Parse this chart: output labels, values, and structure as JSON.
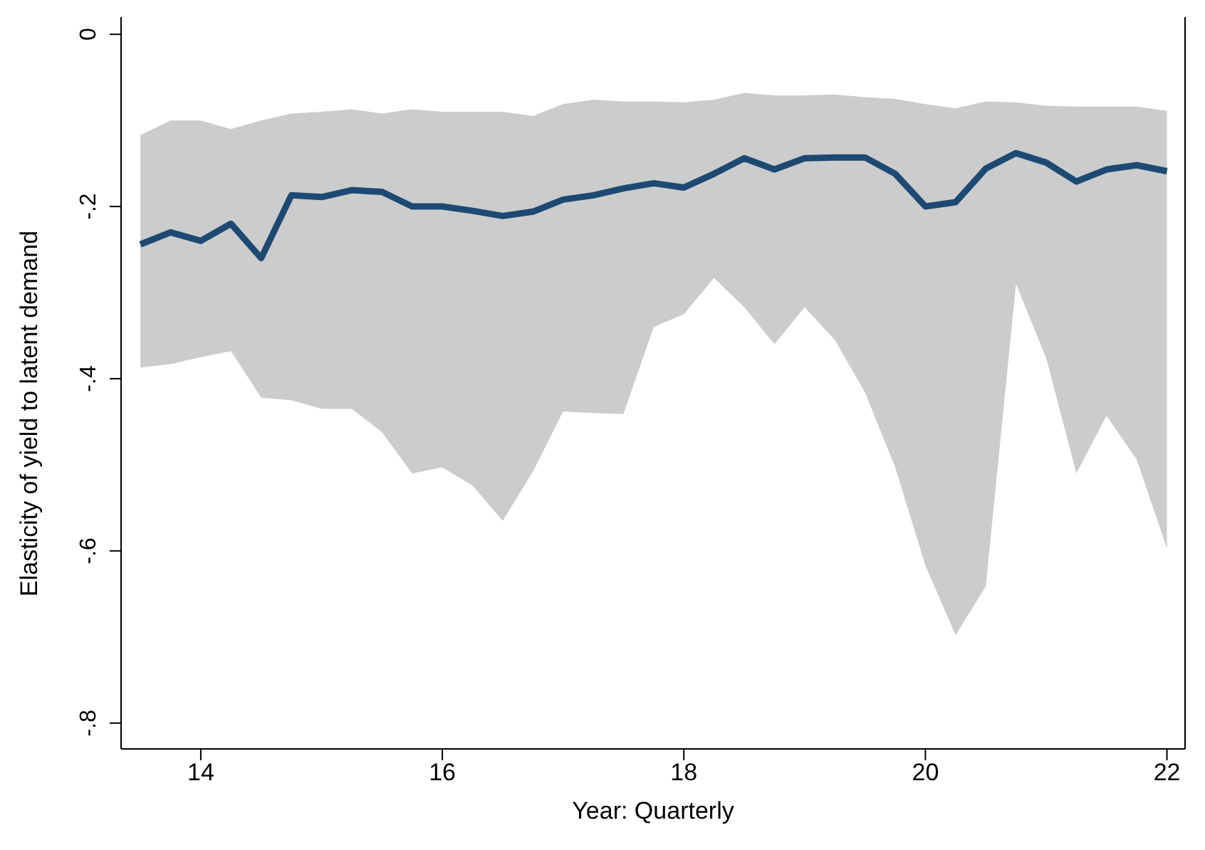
{
  "chart_data": {
    "type": "line",
    "xlabel": "Year: Quarterly",
    "ylabel": "Elasticity of yield to latent demand",
    "x": [
      13.5,
      13.75,
      14,
      14.25,
      14.5,
      14.75,
      15,
      15.25,
      15.5,
      15.75,
      16,
      16.25,
      16.5,
      16.75,
      17,
      17.25,
      17.5,
      17.75,
      18,
      18.25,
      18.5,
      18.75,
      19,
      19.25,
      19.5,
      19.75,
      20,
      20.25,
      20.5,
      20.75,
      21,
      21.25,
      21.5,
      21.75,
      22
    ],
    "series": [
      {
        "color": "#1d4a73",
        "values": [
          -0.244,
          -0.23,
          -0.24,
          -0.22,
          -0.26,
          -0.187,
          -0.189,
          -0.181,
          -0.183,
          -0.2,
          -0.2,
          -0.205,
          -0.211,
          -0.206,
          -0.192,
          -0.187,
          -0.179,
          -0.173,
          -0.178,
          -0.162,
          -0.144,
          -0.157,
          -0.144,
          -0.143,
          -0.143,
          -0.162,
          -0.2,
          -0.195,
          -0.156,
          -0.138,
          -0.149,
          -0.171,
          -0.157,
          -0.152,
          -0.159
        ],
        "lower": [
          -0.387,
          -0.383,
          -0.375,
          -0.368,
          -0.422,
          -0.425,
          -0.435,
          -0.435,
          -0.462,
          -0.51,
          -0.503,
          -0.524,
          -0.565,
          -0.508,
          -0.438,
          -0.44,
          -0.441,
          -0.34,
          -0.325,
          -0.283,
          -0.317,
          -0.36,
          -0.317,
          -0.355,
          -0.416,
          -0.503,
          -0.617,
          -0.698,
          -0.641,
          -0.29,
          -0.376,
          -0.51,
          -0.443,
          -0.494,
          -0.597
        ],
        "upper": [
          -0.117,
          -0.1,
          -0.1,
          -0.11,
          -0.1,
          -0.092,
          -0.09,
          -0.087,
          -0.092,
          -0.087,
          -0.09,
          -0.09,
          -0.09,
          -0.095,
          -0.081,
          -0.076,
          -0.078,
          -0.078,
          -0.079,
          -0.076,
          -0.068,
          -0.071,
          -0.071,
          -0.07,
          -0.073,
          -0.075,
          -0.081,
          -0.086,
          -0.078,
          -0.079,
          -0.083,
          -0.084,
          -0.084,
          -0.084,
          -0.089
        ]
      }
    ],
    "xlim": [
      13.34,
      22.15
    ],
    "xticks": [
      14,
      16,
      18,
      20,
      22
    ],
    "ylim": [
      -0.83,
      0.02
    ],
    "yticks": [
      {
        "value": 0,
        "label": "0"
      },
      {
        "value": -0.2,
        "label": "-.2"
      },
      {
        "value": -0.4,
        "label": "-.4"
      },
      {
        "value": -0.6,
        "label": "-.6"
      },
      {
        "value": -0.8,
        "label": "-.8"
      }
    ],
    "grid": false,
    "legend": false,
    "marker": "none",
    "line_style": "solid"
  }
}
